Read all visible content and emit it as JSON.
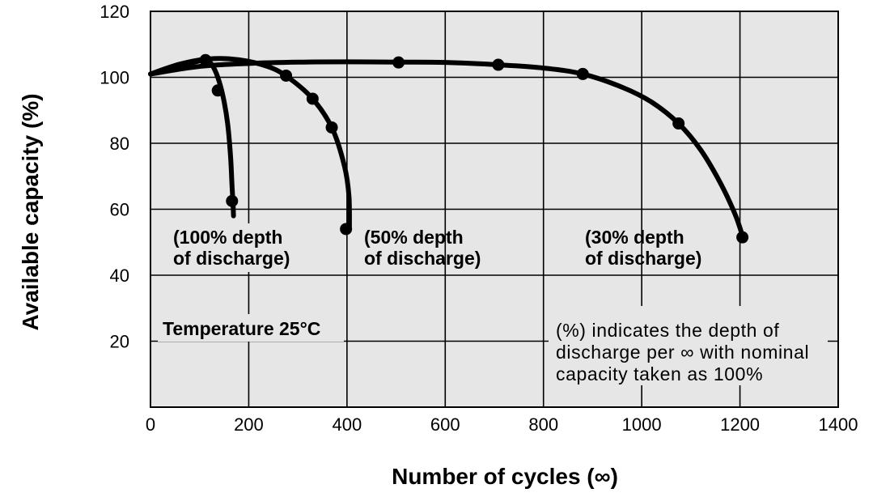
{
  "chart_data": {
    "type": "line",
    "xlabel": "Number of cycles (∞)",
    "ylabel": "Available capacity (%)",
    "xlim": [
      0,
      1400
    ],
    "ylim": [
      0,
      120
    ],
    "x_ticks": [
      "0",
      "200",
      "400",
      "600",
      "800",
      "1000",
      "1200",
      "1400"
    ],
    "y_ticks": [
      "20",
      "40",
      "60",
      "80",
      "100",
      "120"
    ],
    "grid": true,
    "background_color": "#e6e6e6",
    "line_color": "#000000",
    "series": [
      {
        "name": "(100% depth of discharge)",
        "curve": [
          [
            0,
            101
          ],
          [
            40,
            102.5
          ],
          [
            80,
            104.2
          ],
          [
            112,
            105.2
          ],
          [
            125,
            103.8
          ],
          [
            137,
            100
          ],
          [
            148,
            94
          ],
          [
            157,
            86
          ],
          [
            163,
            76
          ],
          [
            166,
            67
          ],
          [
            168,
            62
          ],
          [
            169,
            58
          ]
        ],
        "markers": [
          [
            112,
            105.2
          ],
          [
            137,
            96
          ],
          [
            166,
            62.5
          ]
        ]
      },
      {
        "name": "(50% depth of discharge)",
        "curve": [
          [
            0,
            101
          ],
          [
            60,
            104
          ],
          [
            120,
            105.6
          ],
          [
            180,
            105.3
          ],
          [
            240,
            103.2
          ],
          [
            280,
            100
          ],
          [
            330,
            93.5
          ],
          [
            370,
            84.5
          ],
          [
            395,
            73
          ],
          [
            404,
            64
          ],
          [
            405,
            54
          ]
        ],
        "markers": [
          [
            276,
            100.5
          ],
          [
            330,
            93.5
          ],
          [
            369,
            84.8
          ],
          [
            398,
            54
          ]
        ]
      },
      {
        "name": "(30% depth of discharge)",
        "curve": [
          [
            0,
            101
          ],
          [
            100,
            103.3
          ],
          [
            200,
            104.2
          ],
          [
            300,
            104.6
          ],
          [
            400,
            104.7
          ],
          [
            505,
            104.6
          ],
          [
            600,
            104.5
          ],
          [
            708,
            103.8
          ],
          [
            800,
            102.8
          ],
          [
            880,
            101
          ],
          [
            960,
            97
          ],
          [
            1020,
            92.5
          ],
          [
            1075,
            86
          ],
          [
            1120,
            78
          ],
          [
            1160,
            68
          ],
          [
            1190,
            58.5
          ],
          [
            1205,
            52
          ]
        ],
        "markers": [
          [
            505,
            104.5
          ],
          [
            708,
            103.8
          ],
          [
            880,
            101
          ],
          [
            1075,
            86
          ],
          [
            1205,
            51.5
          ]
        ]
      }
    ],
    "annotations": {
      "series_100_line1": "(100% depth",
      "series_100_line2": "of discharge)",
      "series_50_line1": "(50% depth",
      "series_50_line2": "of discharge)",
      "series_30_line1": "(30% depth",
      "series_30_line2": "of discharge)",
      "temperature": "Temperature 25°C",
      "note_line1": "(%) indicates the depth of",
      "note_line2": "discharge per ∞ with nominal",
      "note_line3": "capacity taken as 100%"
    }
  }
}
